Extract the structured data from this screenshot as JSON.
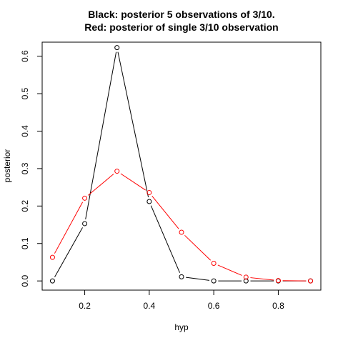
{
  "chart_data": {
    "type": "line",
    "title": [
      "Black: posterior 5 observations of 3/10.",
      "Red: posterior of single 3/10 observation"
    ],
    "xlabel": "hyp",
    "ylabel": "posterior",
    "x": [
      0.1,
      0.2,
      0.3,
      0.4,
      0.5,
      0.6,
      0.7,
      0.8,
      0.9
    ],
    "xlim": [
      0.068,
      0.932
    ],
    "ylim": [
      -0.0245,
      0.6375
    ],
    "x_ticks": [
      0.2,
      0.4,
      0.6,
      0.8
    ],
    "y_ticks": [
      0.0,
      0.1,
      0.2,
      0.3,
      0.4,
      0.5,
      0.6
    ],
    "grid": false,
    "series": [
      {
        "color": "#000000",
        "values": [
          0.0,
          0.153,
          0.623,
          0.212,
          0.011,
          0.0,
          0.0,
          0.0,
          0.0
        ]
      },
      {
        "color": "#ff0000",
        "values": [
          0.063,
          0.221,
          0.293,
          0.236,
          0.13,
          0.047,
          0.01,
          0.001,
          0.0
        ]
      }
    ]
  }
}
